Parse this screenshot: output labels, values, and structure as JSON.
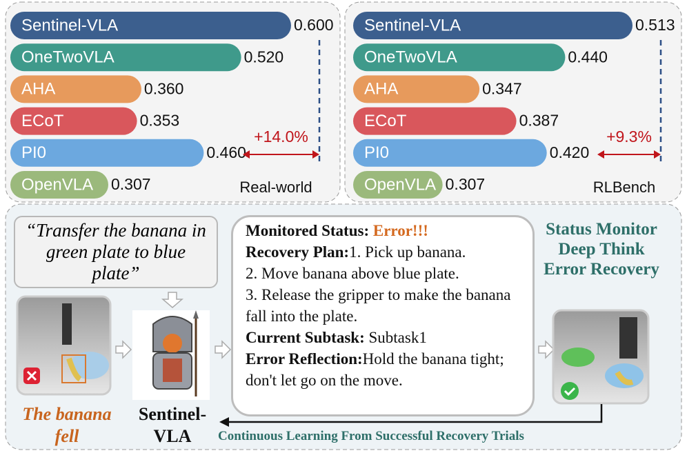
{
  "chart_data": [
    {
      "type": "bar",
      "orientation": "horizontal",
      "title": "Real-world",
      "categories": [
        "Sentinel-VLA",
        "OneTwoVLA",
        "AHA",
        "ECoT",
        "PI0",
        "OpenVLA"
      ],
      "values": [
        0.6,
        0.52,
        0.36,
        0.353,
        0.46,
        0.307
      ],
      "value_labels": [
        "0.600",
        "0.520",
        "0.360",
        "0.353",
        "0.460",
        "0.307"
      ],
      "colors": [
        "#3c5f8e",
        "#3f9a8b",
        "#e79a5c",
        "#d9575c",
        "#6ca8df",
        "#9bb97c"
      ],
      "xlim": [
        0.15,
        0.6
      ],
      "annotation": "+14.0%"
    },
    {
      "type": "bar",
      "orientation": "horizontal",
      "title": "RLBench",
      "categories": [
        "Sentinel-VLA",
        "OneTwoVLA",
        "AHA",
        "ECoT",
        "PI0",
        "OpenVLA"
      ],
      "values": [
        0.513,
        0.44,
        0.347,
        0.387,
        0.42,
        0.307
      ],
      "value_labels": [
        "0.513",
        "0.440",
        "0.347",
        "0.387",
        "0.420",
        "0.307"
      ],
      "colors": [
        "#3c5f8e",
        "#3f9a8b",
        "#e79a5c",
        "#d9575c",
        "#6ca8df",
        "#9bb97c"
      ],
      "xlim": [
        0.21,
        0.513
      ],
      "annotation": "+9.3%"
    }
  ],
  "diagram": {
    "instruction": "“Transfer the banana in green plate to blue plate”",
    "failure_caption": "The banana fell",
    "model_label": "Sentinel-VLA",
    "status": {
      "monitored_label": "Monitored Status:",
      "monitored_value": "Error!!!",
      "plan_label": "Recovery Plan:",
      "plan_steps": [
        "1. Pick up banana.",
        "2. Move banana above blue plate.",
        "3. Release the gripper to make the banana fall into the plate."
      ],
      "subtask_label": "Current Subtask:",
      "subtask_value": "Subtask1",
      "reflection_label": "Error Reflection:",
      "reflection_value": "Hold the banana tight; don't let go on the move."
    },
    "capabilities": [
      "Status Monitor",
      "Deep Think",
      "Error Recovery"
    ],
    "loop_caption": "Continuous Learning From Successful Recovery Trials"
  }
}
